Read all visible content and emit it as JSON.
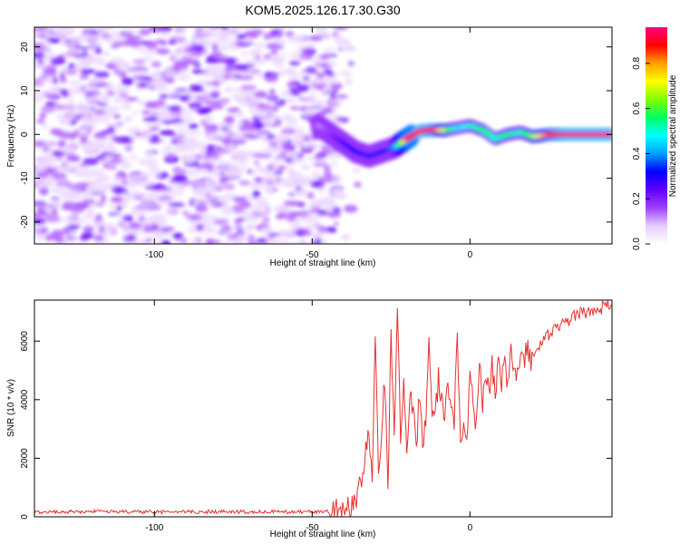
{
  "title": "KOM5.2025.126.17.30.G30",
  "chart_data": [
    {
      "type": "heatmap",
      "xlabel": "Height of straight line (km)",
      "ylabel": "Frequency (Hz)",
      "xlim": [
        -138,
        45
      ],
      "ylim": [
        -25,
        24.5
      ],
      "xticks": [
        -100,
        -50,
        0
      ],
      "yticks": [
        -20,
        -10,
        0,
        10,
        20
      ],
      "colorbar": {
        "label": "Normalized spectral amplitude",
        "range": [
          0,
          0.96
        ],
        "ticks": [
          0.0,
          0.2,
          0.4,
          0.6,
          0.8
        ],
        "colors": [
          "#ffffff",
          "#e6ccff",
          "#a040ff",
          "#6000ff",
          "#0000ff",
          "#00a0ff",
          "#00ffff",
          "#00ff60",
          "#80ff00",
          "#ffff00",
          "#ffa000",
          "#ff0000",
          "#ff0080"
        ]
      },
      "noise_region": {
        "x": [
          -138,
          -42
        ],
        "y": [
          -25,
          24.5
        ],
        "typical_amplitude": 0.05
      },
      "ridge": {
        "x": [
          -48,
          -44,
          -40,
          -36,
          -32,
          -28,
          -24,
          -20,
          -16,
          -12,
          -8,
          -4,
          0,
          4,
          8,
          12,
          16,
          20,
          25,
          30,
          35,
          40,
          45
        ],
        "y": [
          2,
          0,
          -2,
          -4,
          -5,
          -4,
          -3,
          -1,
          0.8,
          1,
          1,
          1.5,
          2,
          1,
          -1,
          0,
          0.5,
          -0.5,
          0,
          0,
          0,
          0,
          0
        ],
        "amplitude": [
          0.12,
          0.18,
          0.25,
          0.3,
          0.28,
          0.3,
          0.38,
          0.85,
          0.95,
          0.9,
          0.7,
          0.45,
          0.5,
          0.55,
          0.5,
          0.55,
          0.5,
          0.65,
          0.85,
          0.95,
          0.95,
          0.95,
          0.95
        ]
      }
    },
    {
      "type": "line",
      "xlabel": "Height of straight line (km)",
      "ylabel": "SNR (10 * v/v)",
      "xlim": [
        -138,
        45
      ],
      "ylim": [
        0,
        7400
      ],
      "xticks": [
        -100,
        -50,
        0
      ],
      "yticks": [
        0,
        2000,
        4000,
        6000
      ],
      "color": "#e83030",
      "x": [
        -138,
        -120,
        -100,
        -80,
        -60,
        -45,
        -40,
        -38,
        -36,
        -34,
        -32,
        -31,
        -30,
        -29,
        -28,
        -27,
        -26,
        -25,
        -24,
        -23,
        -22,
        -21,
        -20,
        -19,
        -18,
        -17,
        -16,
        -15,
        -14,
        -13,
        -12,
        -11,
        -10,
        -9,
        -8,
        -7,
        -6,
        -5,
        -4,
        -3,
        -2,
        -1,
        0,
        1,
        2,
        3,
        4,
        5,
        6,
        7,
        8,
        9,
        10,
        11,
        12,
        13,
        14,
        15,
        16,
        17,
        18,
        19,
        20,
        22,
        25,
        28,
        31,
        34,
        37,
        40,
        43,
        45
      ],
      "y": [
        160,
        180,
        160,
        170,
        170,
        175,
        200,
        300,
        700,
        1300,
        3200,
        1100,
        6100,
        1500,
        2800,
        4800,
        800,
        6300,
        3000,
        7150,
        2600,
        4500,
        2000,
        4300,
        3800,
        2300,
        4300,
        2800,
        3100,
        5900,
        3100,
        3500,
        4700,
        3900,
        3000,
        4800,
        3300,
        3400,
        6300,
        2400,
        3500,
        2700,
        4700,
        4100,
        2900,
        5500,
        3800,
        4900,
        4200,
        5400,
        3900,
        5600,
        4600,
        5200,
        4500,
        5800,
        5000,
        4800,
        5600,
        5100,
        5900,
        5400,
        5500,
        5900,
        6200,
        6500,
        6700,
        6900,
        7000,
        7050,
        7200,
        7200
      ]
    }
  ]
}
